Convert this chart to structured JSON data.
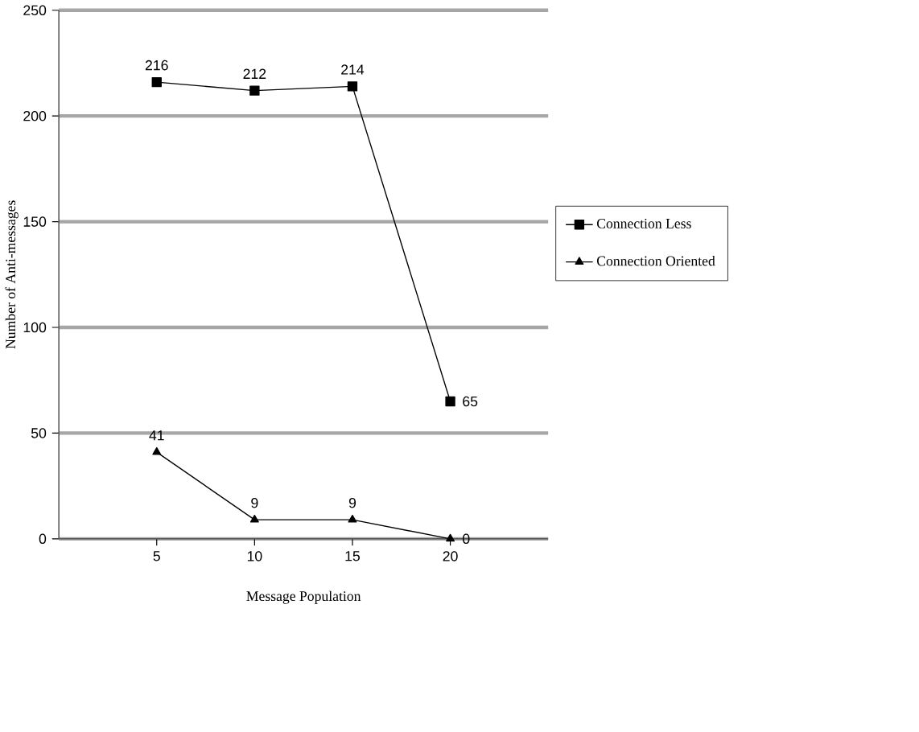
{
  "chart_data": {
    "type": "line",
    "xlabel": "Message Population",
    "ylabel": "Number of Anti-messages",
    "categories": [
      "5",
      "10",
      "15",
      "20"
    ],
    "series": [
      {
        "name": "Connection Less",
        "color": "#000000",
        "marker": "square",
        "values": [
          216,
          212,
          214,
          65
        ]
      },
      {
        "name": "Connection Oriented",
        "color": "#000000",
        "marker": "triangle",
        "values": [
          41,
          9,
          9,
          0
        ]
      }
    ],
    "ylim": [
      0,
      250
    ],
    "yticks": [
      0,
      50,
      100,
      150,
      200,
      250
    ],
    "grid": "y",
    "legend": "right",
    "data_labels": true
  }
}
